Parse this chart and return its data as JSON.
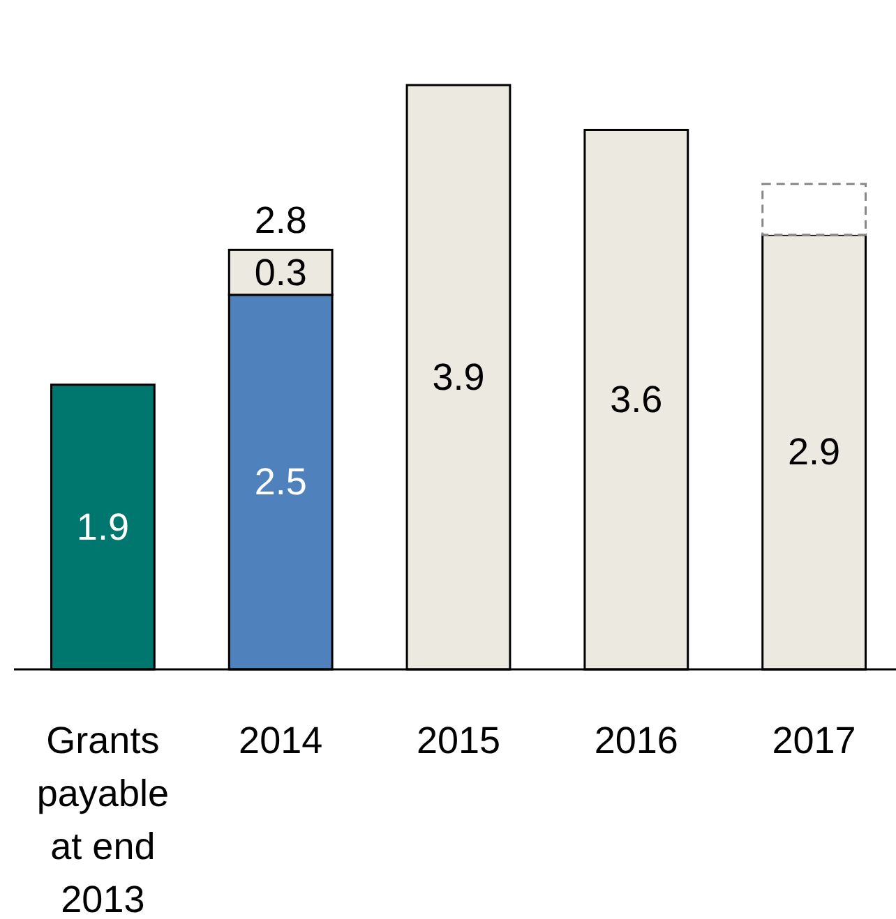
{
  "chart_data": {
    "type": "bar",
    "stacked": true,
    "categories": [
      "Grants payable at end 2013",
      "2014",
      "2015",
      "2016",
      "2017"
    ],
    "series": [
      {
        "colors": [
          "#00776e",
          "#4f81bd",
          "#eceae0",
          "#eceae0",
          "#eceae0"
        ],
        "values": [
          1.9,
          2.5,
          3.9,
          3.6,
          2.9
        ],
        "value_labels": [
          "1.9",
          "2.5",
          "3.9",
          "3.6",
          "2.9"
        ]
      },
      {
        "color": "#eceae0",
        "values": [
          null,
          0.3,
          null,
          null,
          null
        ],
        "value_labels": [
          null,
          "0.3",
          null,
          null,
          null
        ]
      },
      {
        "color": "#ffffff",
        "line_style": "dashed",
        "values": [
          null,
          null,
          null,
          null,
          0.34
        ]
      }
    ],
    "totals": [
      null,
      "2.8",
      null,
      null,
      null
    ]
  }
}
